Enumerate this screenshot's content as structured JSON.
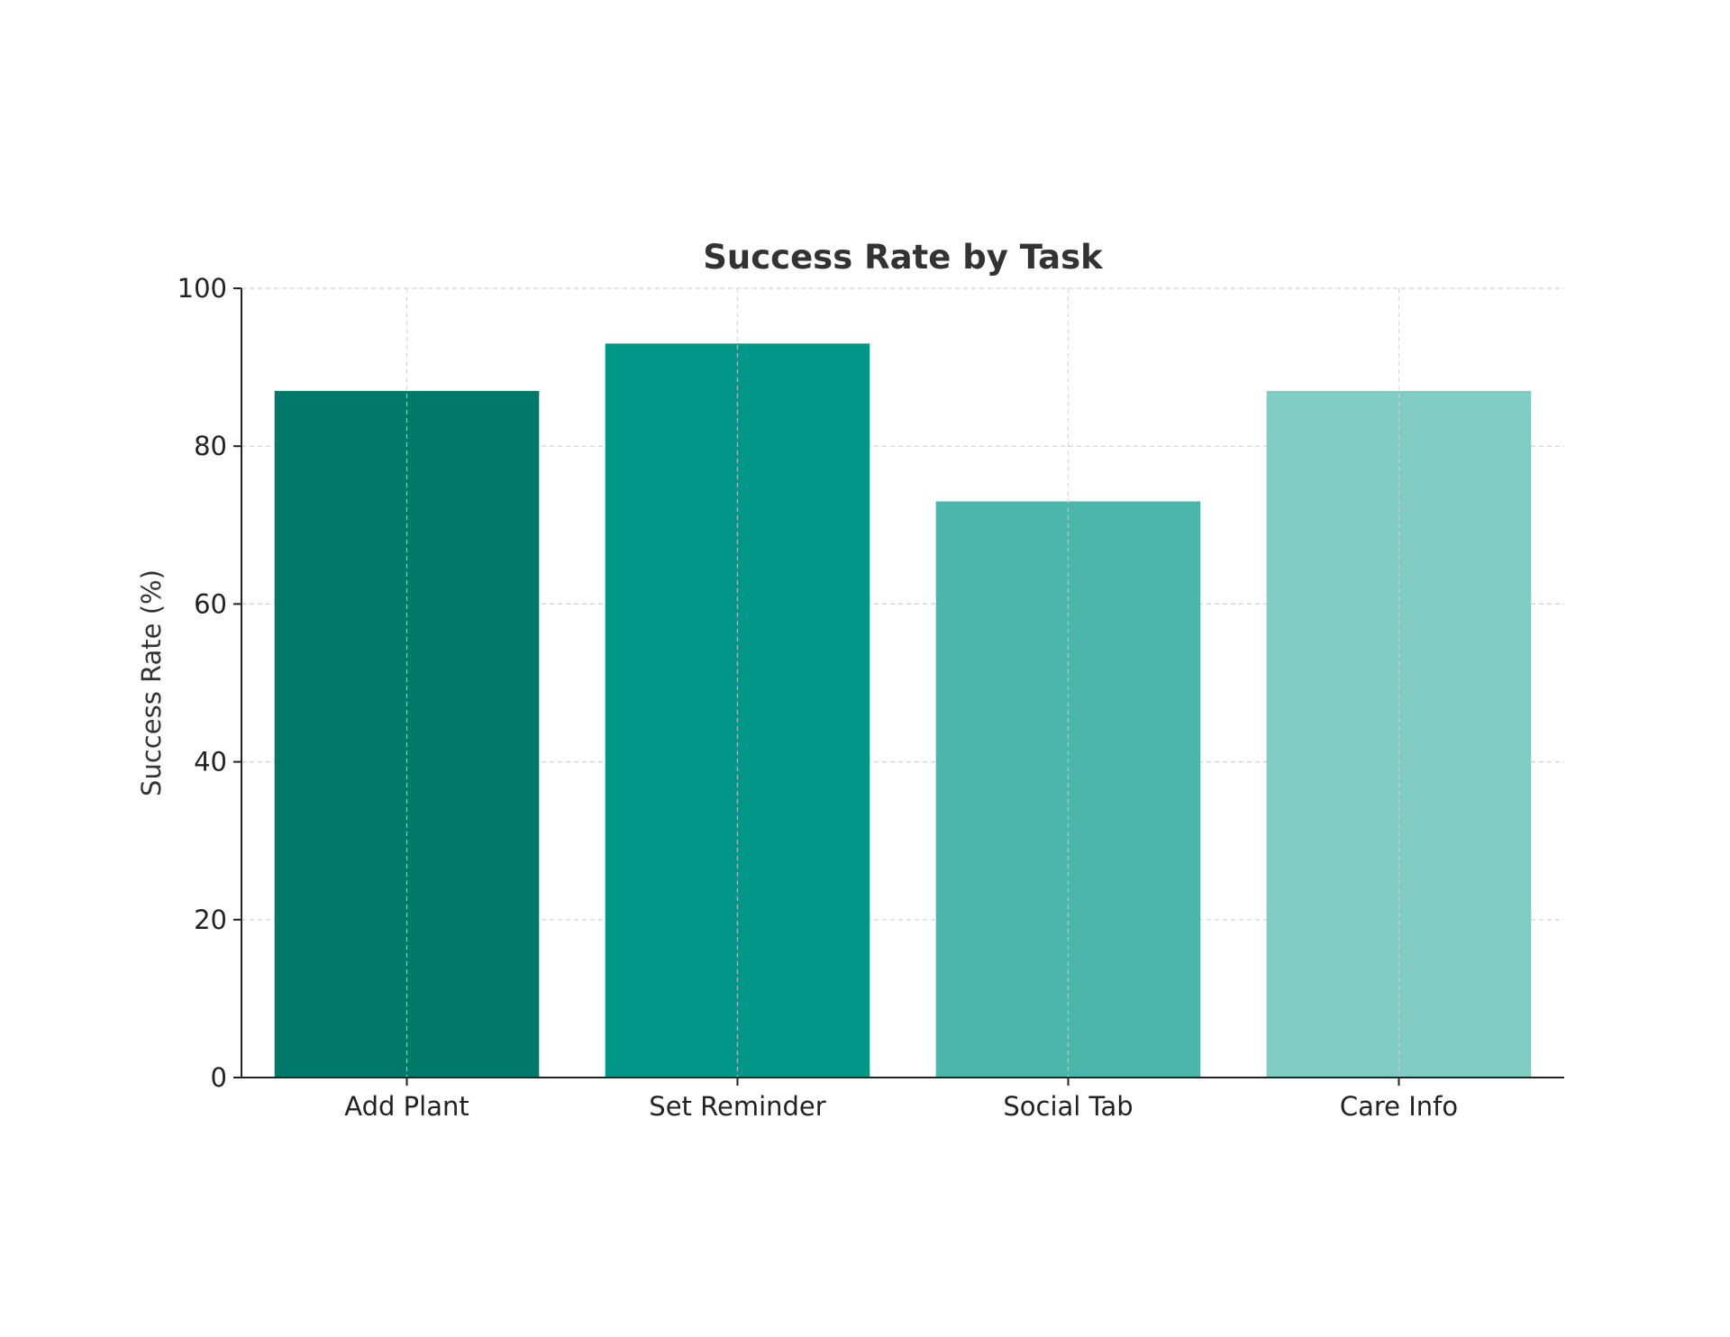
{
  "chart_data": {
    "type": "bar",
    "title": "Success Rate by Task",
    "xlabel": "",
    "ylabel": "Success Rate (%)",
    "categories": [
      "Add Plant",
      "Set Reminder",
      "Social Tab",
      "Care Info"
    ],
    "values": [
      87,
      93,
      73,
      87
    ],
    "ylim": [
      0,
      100
    ],
    "yticks": [
      0,
      20,
      40,
      60,
      80,
      100
    ],
    "grid": true,
    "bar_colors": [
      "#00796b",
      "#009688",
      "#4db6ac",
      "#80cbc4"
    ]
  }
}
